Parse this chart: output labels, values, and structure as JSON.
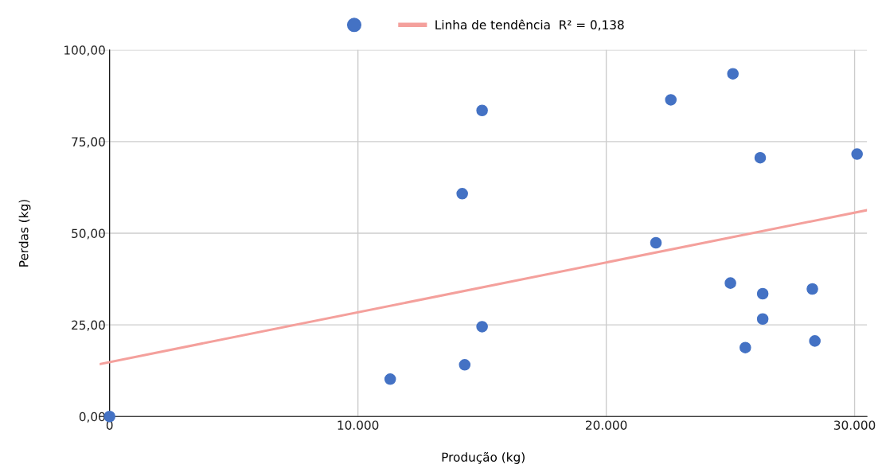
{
  "chart_data": {
    "type": "scatter",
    "xlabel": "Produção (kg)",
    "ylabel": "Perdas (kg)",
    "xlim": [
      -400,
      30500
    ],
    "ylim": [
      0,
      100
    ],
    "xticks": [
      {
        "value": 0,
        "label": "0"
      },
      {
        "value": 10000,
        "label": "10.000"
      },
      {
        "value": 20000,
        "label": "20.000"
      },
      {
        "value": 30000,
        "label": "30.000"
      }
    ],
    "yticks": [
      {
        "value": 0,
        "label": "0,00"
      },
      {
        "value": 25,
        "label": "25,00"
      },
      {
        "value": 50,
        "label": "50,00"
      },
      {
        "value": 75,
        "label": "75,00"
      },
      {
        "value": 100,
        "label": "100,00"
      }
    ],
    "grid": true,
    "legend": "top",
    "series": [
      {
        "marker": "circle",
        "color": "#4472c4",
        "x": [
          0,
          11300,
          14300,
          14200,
          15000,
          15000,
          22000,
          22600,
          25100,
          25000,
          25600,
          26200,
          26300,
          26300,
          28300,
          28400,
          30100
        ],
        "values": [
          0,
          10.2,
          14.1,
          60.8,
          83.5,
          24.5,
          47.4,
          86.4,
          93.5,
          36.4,
          18.8,
          70.6,
          33.5,
          26.6,
          34.8,
          20.6,
          71.6
        ]
      },
      {
        "type": "line",
        "name": "Linha de tendência  R² = 0,138",
        "color": "#f4a09c",
        "x": [
          -400,
          30500
        ],
        "values": [
          14.3,
          56.3
        ],
        "line_style": "solid"
      }
    ]
  }
}
